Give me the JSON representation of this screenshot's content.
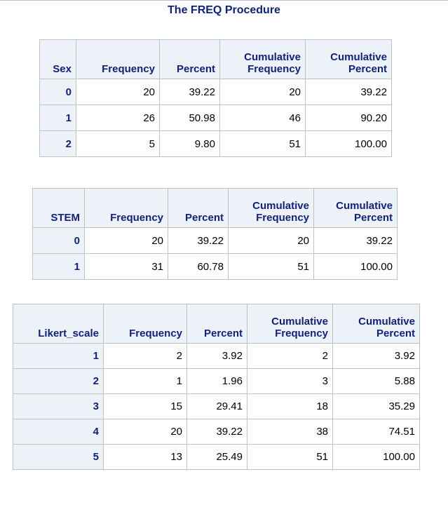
{
  "title": "The FREQ Procedure",
  "tables": [
    {
      "var": "Sex",
      "headers": [
        "Sex",
        "Frequency",
        "Percent",
        "Cumulative Frequency",
        "Cumulative Percent"
      ],
      "rows": [
        [
          "0",
          "20",
          "39.22",
          "20",
          "39.22"
        ],
        [
          "1",
          "26",
          "50.98",
          "46",
          "90.20"
        ],
        [
          "2",
          "5",
          "9.80",
          "51",
          "100.00"
        ]
      ]
    },
    {
      "var": "STEM",
      "headers": [
        "STEM",
        "Frequency",
        "Percent",
        "Cumulative Frequency",
        "Cumulative Percent"
      ],
      "rows": [
        [
          "0",
          "20",
          "39.22",
          "20",
          "39.22"
        ],
        [
          "1",
          "31",
          "60.78",
          "51",
          "100.00"
        ]
      ]
    },
    {
      "var": "Likert_scale",
      "headers": [
        "Likert_scale",
        "Frequency",
        "Percent",
        "Cumulative Frequency",
        "Cumulative Percent"
      ],
      "rows": [
        [
          "1",
          "2",
          "3.92",
          "2",
          "3.92"
        ],
        [
          "2",
          "1",
          "1.96",
          "3",
          "5.88"
        ],
        [
          "3",
          "15",
          "29.41",
          "18",
          "35.29"
        ],
        [
          "4",
          "20",
          "39.22",
          "38",
          "74.51"
        ],
        [
          "5",
          "13",
          "25.49",
          "51",
          "100.00"
        ]
      ]
    }
  ]
}
